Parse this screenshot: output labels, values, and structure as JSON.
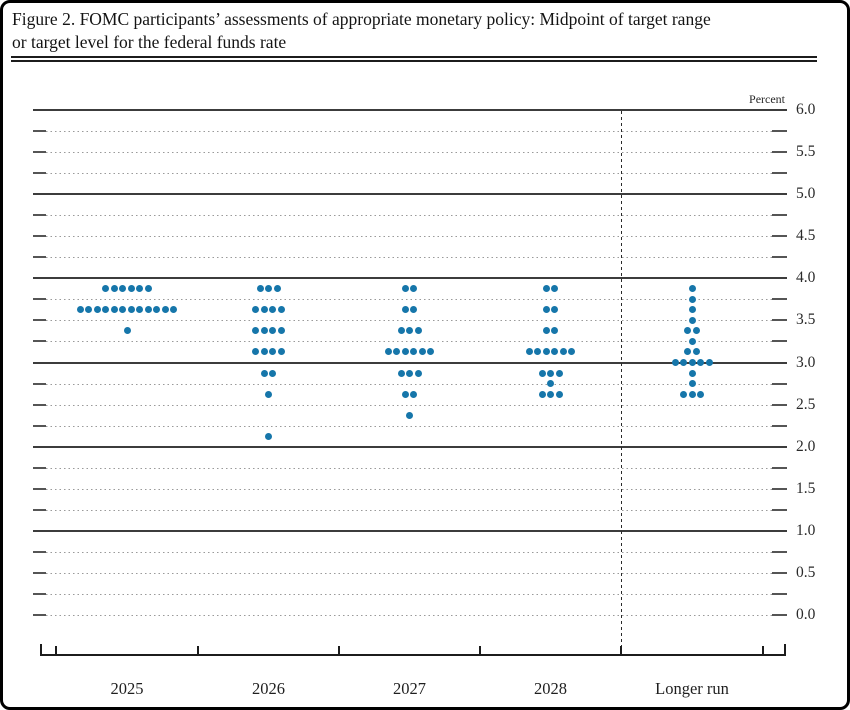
{
  "figure_title": {
    "line1": "Figure 2. FOMC participants’ assessments of appropriate monetary policy: Midpoint of target range",
    "line2": "or target level for the federal funds rate"
  },
  "chart_data": {
    "type": "scatter",
    "subtype": "fomc-dot-plot",
    "title": "Figure 2. FOMC participants’ assessments of appropriate monetary policy: Midpoint of target range or target level for the federal funds rate",
    "ylabel": "Percent",
    "ylim": [
      0.0,
      6.0
    ],
    "y_tick_step": 0.25,
    "y_label_step": 0.5,
    "y_axis_labels": [
      "6.0",
      "5.5",
      "5.0",
      "4.5",
      "4.0",
      "3.5",
      "3.0",
      "2.5",
      "2.0",
      "1.5",
      "1.0",
      "0.5",
      "0.0"
    ],
    "grid": "solid lines at 1.0-6.0 integers, dotted lines at other quarter-point levels",
    "legend_position": "none",
    "dot_color": "#1676aa",
    "solid_line_color": "#3c3c3c",
    "dashed_line_color": "#9a9a9a",
    "categories": [
      "2025",
      "2026",
      "2027",
      "2028",
      "Longer run"
    ],
    "participants_per_column": 19,
    "series": [
      {
        "category": "2025",
        "dots": [
          {
            "rate": 3.875,
            "count": 6
          },
          {
            "rate": 3.625,
            "count": 12
          },
          {
            "rate": 3.375,
            "count": 1
          }
        ]
      },
      {
        "category": "2026",
        "dots": [
          {
            "rate": 3.875,
            "count": 3
          },
          {
            "rate": 3.625,
            "count": 4
          },
          {
            "rate": 3.375,
            "count": 4
          },
          {
            "rate": 3.125,
            "count": 4
          },
          {
            "rate": 2.875,
            "count": 2
          },
          {
            "rate": 2.625,
            "count": 1
          },
          {
            "rate": 2.125,
            "count": 1
          }
        ]
      },
      {
        "category": "2027",
        "dots": [
          {
            "rate": 3.875,
            "count": 2
          },
          {
            "rate": 3.625,
            "count": 2
          },
          {
            "rate": 3.375,
            "count": 3
          },
          {
            "rate": 3.125,
            "count": 6
          },
          {
            "rate": 2.875,
            "count": 3
          },
          {
            "rate": 2.625,
            "count": 2
          },
          {
            "rate": 2.375,
            "count": 1
          }
        ]
      },
      {
        "category": "2028",
        "dots": [
          {
            "rate": 3.875,
            "count": 2
          },
          {
            "rate": 3.625,
            "count": 2
          },
          {
            "rate": 3.375,
            "count": 2
          },
          {
            "rate": 3.125,
            "count": 6
          },
          {
            "rate": 2.875,
            "count": 3
          },
          {
            "rate": 2.75,
            "count": 1
          },
          {
            "rate": 2.625,
            "count": 3
          }
        ]
      },
      {
        "category": "Longer run",
        "dots": [
          {
            "rate": 3.875,
            "count": 1
          },
          {
            "rate": 3.75,
            "count": 1
          },
          {
            "rate": 3.625,
            "count": 1
          },
          {
            "rate": 3.5,
            "count": 1
          },
          {
            "rate": 3.375,
            "count": 2
          },
          {
            "rate": 3.25,
            "count": 1
          },
          {
            "rate": 3.125,
            "count": 2
          },
          {
            "rate": 3.0,
            "count": 5
          },
          {
            "rate": 2.875,
            "count": 1
          },
          {
            "rate": 2.75,
            "count": 1
          },
          {
            "rate": 2.625,
            "count": 3
          }
        ]
      }
    ]
  }
}
